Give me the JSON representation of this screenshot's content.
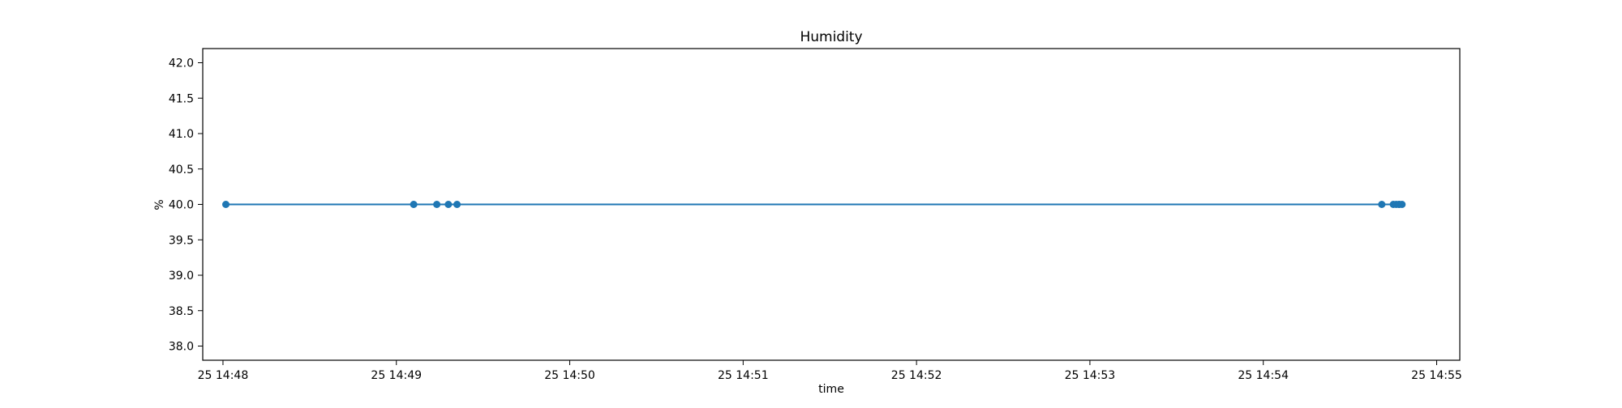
{
  "chart_data": {
    "type": "line",
    "title": "Humidity",
    "xlabel": "time",
    "ylabel": "%",
    "grid": false,
    "legend": "none",
    "line_color": "#1f77b4",
    "marker": "circle",
    "ylim": [
      37.8,
      42.2
    ],
    "yticks": [
      38.0,
      38.5,
      39.0,
      39.5,
      40.0,
      40.5,
      41.0,
      41.5,
      42.0
    ],
    "ytick_labels": [
      "38.0",
      "38.5",
      "39.0",
      "39.5",
      "40.0",
      "40.5",
      "41.0",
      "41.5",
      "42.0"
    ],
    "xlim": [
      "25 14:47:53",
      "25 14:55:08"
    ],
    "xticks": [
      "25 14:48:00",
      "25 14:49:00",
      "25 14:50:00",
      "25 14:51:00",
      "25 14:52:00",
      "25 14:53:00",
      "25 14:54:00",
      "25 14:55:00"
    ],
    "xtick_labels": [
      "25 14:48",
      "25 14:49",
      "25 14:50",
      "25 14:51",
      "25 14:52",
      "25 14:53",
      "25 14:54",
      "25 14:55"
    ],
    "series": [
      {
        "x": [
          "25 14:48:01",
          "25 14:49:06",
          "25 14:49:14",
          "25 14:49:18",
          "25 14:49:21",
          "25 14:54:41",
          "25 14:54:45",
          "25 14:54:46",
          "25 14:54:47",
          "25 14:54:47",
          "25 14:54:48"
        ],
        "y": [
          40.0,
          40.0,
          40.0,
          40.0,
          40.0,
          40.0,
          40.0,
          40.0,
          40.0,
          40.0,
          40.0
        ]
      }
    ]
  }
}
